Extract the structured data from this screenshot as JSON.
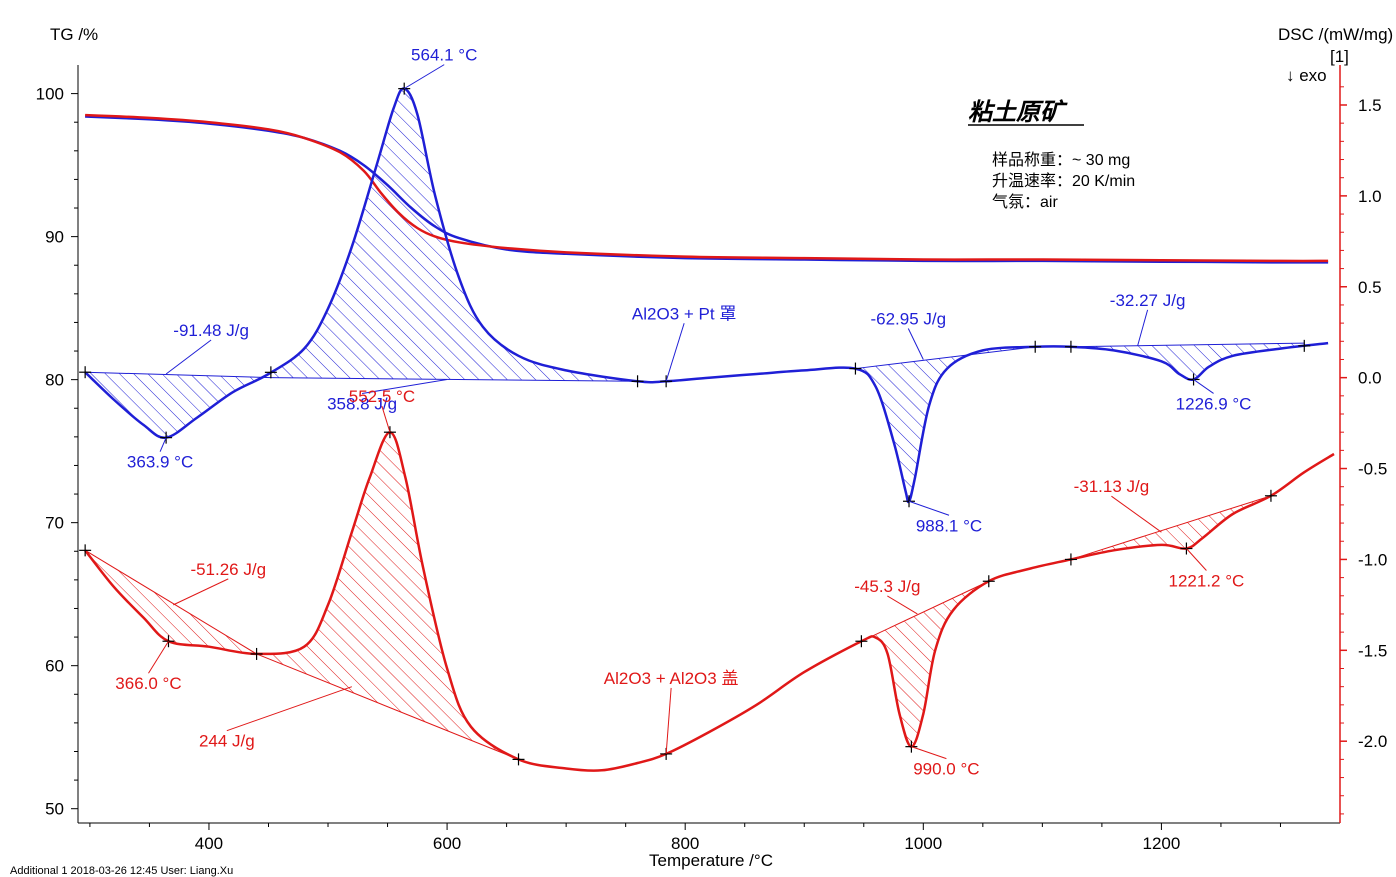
{
  "chart_data": {
    "type": "line",
    "xlabel": "Temperature /°C",
    "ylabel_left": "TG /%",
    "ylabel_right": "DSC /(mW/mg)",
    "right_axis_index": "[1]",
    "exo_label": "↓ exo",
    "xlim": [
      290,
      1350
    ],
    "ylim_left": [
      49,
      102
    ],
    "ylim_right": [
      -2.45,
      1.72
    ],
    "x_ticks": [
      400,
      600,
      800,
      1000,
      1200
    ],
    "y_ticks_left": [
      50,
      60,
      70,
      80,
      90,
      100
    ],
    "y_ticks_right": [
      1.5,
      1.0,
      0.5,
      0.0,
      -0.5,
      -1.0,
      -1.5,
      -2.0
    ],
    "y_ticks_right_labels": [
      "1.5",
      "1.0",
      "0.5",
      "0.0",
      "-0.5",
      "-1.0",
      "-1.5",
      "-2.0"
    ],
    "legend_block": {
      "title": "粘土原矿",
      "lines": [
        "样品称重：~ 30 mg",
        "升温速率：20 K/min",
        "气氛：air"
      ]
    },
    "footer": "Additional 1   2018-03-26 12:45   User: Liang.Xu",
    "colors": {
      "blue": "#1f1fd6",
      "red": "#e01818",
      "axis_right": "#e01818"
    },
    "series": [
      {
        "name": "",
        "kind": "TG",
        "axis": "left",
        "color": "#1f1fd6",
        "x": [
          296,
          350,
          400,
          450,
          480,
          510,
          530,
          550,
          570,
          590,
          610,
          650,
          700,
          800,
          900,
          1000,
          1100,
          1200,
          1300,
          1340
        ],
        "y": [
          98.4,
          98.2,
          97.9,
          97.4,
          96.9,
          96.0,
          95.0,
          93.6,
          92.0,
          90.7,
          89.9,
          89.1,
          88.8,
          88.5,
          88.4,
          88.3,
          88.3,
          88.25,
          88.2,
          88.2
        ]
      },
      {
        "name": "",
        "kind": "TG",
        "axis": "left",
        "color": "#e01818",
        "x": [
          296,
          350,
          400,
          450,
          480,
          510,
          530,
          545,
          560,
          575,
          590,
          610,
          650,
          700,
          800,
          900,
          1000,
          1100,
          1200,
          1300,
          1340
        ],
        "y": [
          98.5,
          98.3,
          98.0,
          97.5,
          96.9,
          95.9,
          94.6,
          93.0,
          91.6,
          90.6,
          90.0,
          89.6,
          89.2,
          88.9,
          88.6,
          88.5,
          88.4,
          88.4,
          88.35,
          88.3,
          88.3
        ]
      },
      {
        "name": "Al2O3 + Pt 罩",
        "kind": "DSC",
        "axis": "right",
        "color": "#1f1fd6",
        "x": [
          296,
          320,
          345,
          364,
          390,
          420,
          450,
          480,
          500,
          520,
          540,
          555,
          564,
          575,
          590,
          610,
          630,
          660,
          700,
          760,
          784,
          820,
          860,
          900,
          943,
          960,
          975,
          985,
          988,
          993,
          1005,
          1020,
          1050,
          1094,
          1124,
          1160,
          1200,
          1215,
          1227,
          1240,
          1260,
          1300,
          1340
        ],
        "y": [
          0.03,
          -0.12,
          -0.26,
          -0.33,
          -0.22,
          -0.08,
          0.02,
          0.16,
          0.38,
          0.72,
          1.15,
          1.48,
          1.59,
          1.45,
          1.0,
          0.55,
          0.28,
          0.12,
          0.04,
          -0.02,
          -0.02,
          0.0,
          0.02,
          0.04,
          0.05,
          -0.05,
          -0.35,
          -0.62,
          -0.68,
          -0.55,
          -0.15,
          0.05,
          0.15,
          0.17,
          0.17,
          0.15,
          0.09,
          0.02,
          -0.01,
          0.06,
          0.12,
          0.16,
          0.19
        ]
      },
      {
        "name": "Al2O3 + Al2O3 盖",
        "kind": "DSC",
        "axis": "right",
        "color": "#e01818",
        "x": [
          296,
          320,
          345,
          366,
          400,
          440,
          480,
          500,
          520,
          535,
          552,
          565,
          580,
          600,
          620,
          660,
          700,
          730,
          760,
          784,
          820,
          860,
          900,
          948,
          960,
          970,
          980,
          990,
          1000,
          1010,
          1025,
          1055,
          1090,
          1124,
          1160,
          1200,
          1221,
          1235,
          1260,
          1292,
          1320,
          1345
        ],
        "y": [
          -0.95,
          -1.15,
          -1.32,
          -1.45,
          -1.48,
          -1.52,
          -1.48,
          -1.25,
          -0.85,
          -0.55,
          -0.3,
          -0.55,
          -1.05,
          -1.6,
          -1.92,
          -2.1,
          -2.15,
          -2.16,
          -2.12,
          -2.07,
          -1.95,
          -1.8,
          -1.62,
          -1.45,
          -1.43,
          -1.52,
          -1.85,
          -2.03,
          -1.85,
          -1.5,
          -1.28,
          -1.12,
          -1.05,
          -1.0,
          -0.95,
          -0.92,
          -0.94,
          -0.88,
          -0.75,
          -0.65,
          -0.52,
          -0.42
        ]
      }
    ],
    "baselines": [
      {
        "series": 2,
        "x": [
          296,
          452
        ],
        "y": [
          0.03,
          0.0
        ]
      },
      {
        "series": 2,
        "x": [
          452,
          760
        ],
        "y": [
          0.0,
          -0.02
        ]
      },
      {
        "series": 2,
        "x": [
          943,
          1094
        ],
        "y": [
          0.05,
          0.17
        ]
      },
      {
        "series": 2,
        "x": [
          1124,
          1320
        ],
        "y": [
          0.17,
          0.19
        ]
      },
      {
        "series": 3,
        "x": [
          296,
          440
        ],
        "y": [
          -0.95,
          -1.52
        ]
      },
      {
        "series": 3,
        "x": [
          440,
          660
        ],
        "y": [
          -1.52,
          -2.1
        ]
      },
      {
        "series": 3,
        "x": [
          948,
          1055
        ],
        "y": [
          -1.45,
          -1.12
        ]
      },
      {
        "series": 3,
        "x": [
          1124,
          1292
        ],
        "y": [
          -1.0,
          -0.65
        ]
      }
    ],
    "markers": [
      {
        "series": 2,
        "x": [
          296,
          364,
          452,
          564,
          760,
          784,
          943,
          988,
          1094,
          1124,
          1227,
          1320
        ]
      },
      {
        "series": 3,
        "x": [
          296,
          366,
          440,
          552,
          660,
          784,
          948,
          990,
          1055,
          1124,
          1221,
          1292
        ]
      }
    ],
    "annotations": [
      {
        "text": "564.1 °C",
        "color": "blue",
        "x": 564,
        "y": 1.59,
        "dx": 40,
        "dy": -28
      },
      {
        "text": "-91.48 J/g",
        "color": "blue",
        "x": 364,
        "y": 0.02,
        "dx": 45,
        "dy": -38
      },
      {
        "text": "363.9 °C",
        "color": "blue",
        "x": 364,
        "y": -0.33,
        "dx": -6,
        "dy": 30
      },
      {
        "text": "358.8 J/g",
        "color": "blue",
        "x": 600,
        "y": -0.01,
        "dx": -85,
        "dy": 30
      },
      {
        "text": "Al2O3 + Pt 罩",
        "color": "blue",
        "x": 784,
        "y": -0.02,
        "dx": 18,
        "dy": -62
      },
      {
        "text": "-62.95 J/g",
        "color": "blue",
        "x": 1000,
        "y": 0.1,
        "dx": -15,
        "dy": -35
      },
      {
        "text": "988.1 °C",
        "color": "blue",
        "x": 988,
        "y": -0.68,
        "dx": 40,
        "dy": 30
      },
      {
        "text": "-32.27 J/g",
        "color": "blue",
        "x": 1180,
        "y": 0.175,
        "dx": 10,
        "dy": -40
      },
      {
        "text": "1226.9 °C",
        "color": "blue",
        "x": 1227,
        "y": -0.01,
        "dx": 20,
        "dy": 30
      },
      {
        "text": "552.5 °C",
        "color": "red",
        "x": 552,
        "y": -0.3,
        "dx": -8,
        "dy": -30
      },
      {
        "text": "-51.26 J/g",
        "color": "red",
        "x": 370,
        "y": -1.25,
        "dx": 55,
        "dy": -30
      },
      {
        "text": "366.0 °C",
        "color": "red",
        "x": 366,
        "y": -1.45,
        "dx": -20,
        "dy": 48
      },
      {
        "text": "244 J/g",
        "color": "red",
        "x": 520,
        "y": -1.7,
        "dx": -125,
        "dy": 60
      },
      {
        "text": "Al2O3 + Al2O3 盖",
        "color": "red",
        "x": 784,
        "y": -2.07,
        "dx": 5,
        "dy": -70
      },
      {
        "text": "-45.3 J/g",
        "color": "red",
        "x": 995,
        "y": -1.3,
        "dx": -30,
        "dy": -22
      },
      {
        "text": "990.0 °C",
        "color": "red",
        "x": 990,
        "y": -2.03,
        "dx": 35,
        "dy": 28
      },
      {
        "text": "-31.13 J/g",
        "color": "red",
        "x": 1200,
        "y": -0.85,
        "dx": -50,
        "dy": -40
      },
      {
        "text": "1221.2 °C",
        "color": "red",
        "x": 1221,
        "y": -0.94,
        "dx": 20,
        "dy": 38
      }
    ]
  }
}
